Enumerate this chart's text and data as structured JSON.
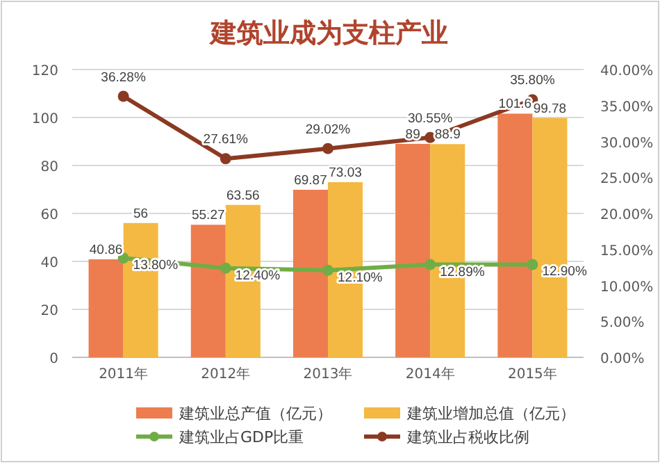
{
  "chart_data": {
    "type": "bar",
    "title": "建筑业成为支柱产业",
    "categories": [
      "2011年",
      "2012年",
      "2013年",
      "2014年",
      "2015年"
    ],
    "series": [
      {
        "name": "建筑业总产值（亿元）",
        "color": "#ed7d4f",
        "values": [
          40.86,
          55.27,
          69.87,
          89,
          101.6
        ]
      },
      {
        "name": "建筑业增加总值（亿元）",
        "color": "#f4b942",
        "values": [
          56,
          63.56,
          73.03,
          88.9,
          99.78
        ]
      },
      {
        "name": "建筑业占GDP比重",
        "type": "line",
        "axis": "y2",
        "color": "#70ad47",
        "values": [
          13.8,
          12.4,
          12.1,
          12.89,
          12.9
        ],
        "value_labels": [
          "13.80%",
          "12.40%",
          "12.10%",
          "12.89%",
          "12.90%"
        ]
      },
      {
        "name": "建筑业占税收比例",
        "type": "line",
        "axis": "y2",
        "color": "#8b3a22",
        "values": [
          36.28,
          27.61,
          29.02,
          30.55,
          35.8
        ],
        "value_labels": [
          "36.28%",
          "27.61%",
          "29.02%",
          "30.55%",
          "35.80%"
        ]
      }
    ],
    "ylim": [
      0,
      120
    ],
    "yticks": [
      0,
      20,
      40,
      60,
      80,
      100,
      120
    ],
    "y2lim": [
      0,
      40
    ],
    "y2ticks": [
      {
        "value": 0,
        "label": "0.00%"
      },
      {
        "value": 5,
        "label": "5.00%"
      },
      {
        "value": 10,
        "label": "10.00%"
      },
      {
        "value": 15,
        "label": "15.00%"
      },
      {
        "value": 20,
        "label": "20.00%"
      },
      {
        "value": 25,
        "label": "25.00%"
      },
      {
        "value": 30,
        "label": "30.00%"
      },
      {
        "value": 35,
        "label": "35.00%"
      },
      {
        "value": 40,
        "label": "40.00%"
      }
    ],
    "data_labels": true,
    "grid": "y",
    "legend": "bottom",
    "marker": "circle"
  }
}
